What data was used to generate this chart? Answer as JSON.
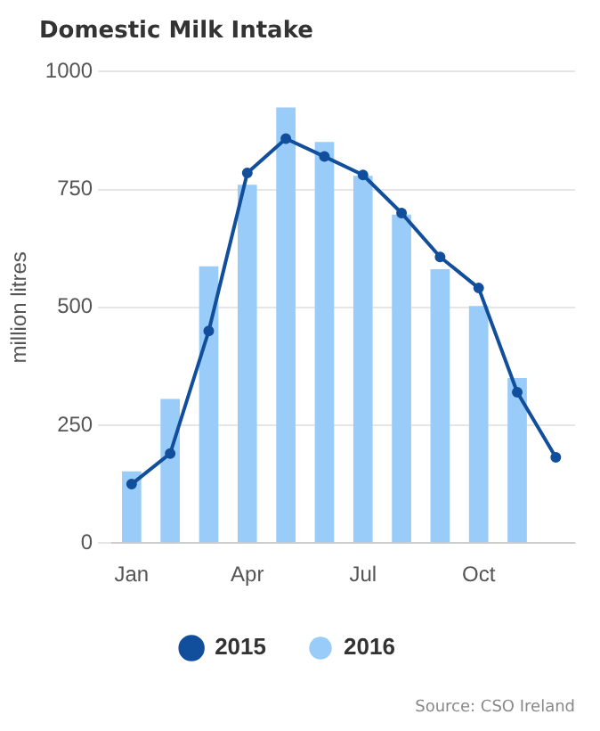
{
  "chart_data": {
    "type": "bar",
    "title": "Domestic Milk Intake",
    "ylabel": "million litres",
    "categories": [
      "Jan",
      null,
      null,
      "Apr",
      null,
      null,
      "Jul",
      null,
      null,
      "Oct",
      null,
      null
    ],
    "series": [
      {
        "name": "2015",
        "type": "line",
        "color": "#114e9c",
        "values": [
          125,
          190,
          450,
          785,
          858,
          820,
          781,
          700,
          607,
          541,
          320,
          182
        ]
      },
      {
        "name": "2016",
        "color": "#99ccf8",
        "values": [
          152,
          306,
          587,
          760,
          924,
          851,
          779,
          697,
          581,
          503,
          350,
          null
        ]
      }
    ],
    "ylim": [
      0,
      1000
    ],
    "yticks": [
      0,
      250,
      500,
      750,
      1000
    ],
    "grid": "y",
    "legend": "bottom",
    "marker": "circle",
    "annotations": [
      "Source: CSO Ireland"
    ]
  }
}
